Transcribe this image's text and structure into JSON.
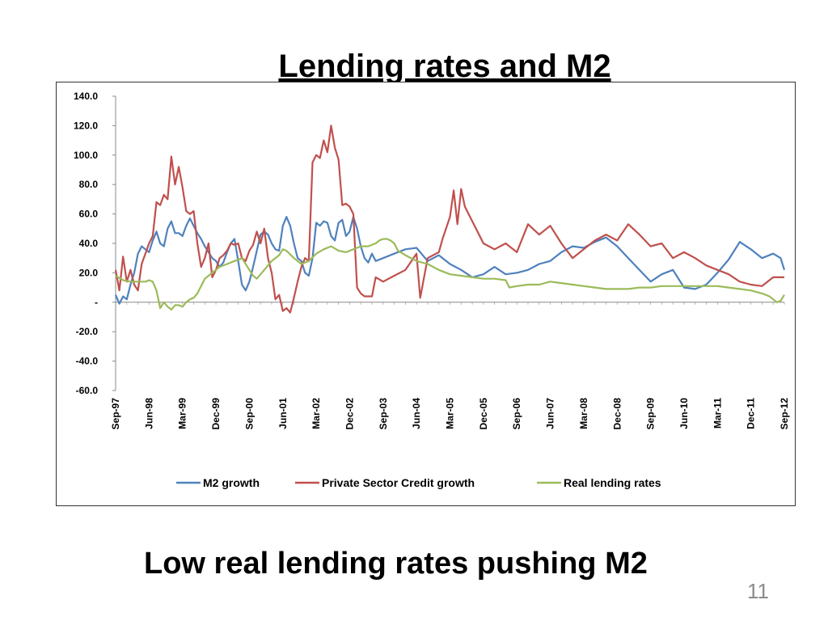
{
  "slide": {
    "title": "Lending rates and M2",
    "caption": "Low real lending rates  pushing M2",
    "page_number": "11"
  },
  "chart_data": {
    "type": "line",
    "title": "",
    "xlabel": "",
    "ylabel": "",
    "ylim": [
      -60,
      140
    ],
    "y_ticks": [
      140,
      120,
      100,
      80,
      60,
      40,
      20,
      0,
      -20,
      -40,
      -60
    ],
    "y_tick_labels": [
      "140.0",
      "120.0",
      "100.0",
      "80.0",
      "60.0",
      "40.0",
      "20.0",
      "-",
      "-20.0",
      "-40.0",
      "-60.0"
    ],
    "x_tick_labels": [
      "Sep-97",
      "Jun-98",
      "Mar-99",
      "Dec-99",
      "Sep-00",
      "Jun-01",
      "Mar-02",
      "Dec-02",
      "Sep-03",
      "Jun-04",
      "Mar-05",
      "Dec-05",
      "Sep-06",
      "Jun-07",
      "Mar-08",
      "Dec-08",
      "Sep-09",
      "Jun-10",
      "Mar-11",
      "Dec-11",
      "Sep-12"
    ],
    "x_tick_index": [
      0,
      9,
      18,
      27,
      36,
      45,
      54,
      63,
      72,
      81,
      90,
      99,
      108,
      117,
      126,
      135,
      144,
      153,
      162,
      171,
      180
    ],
    "grid": false,
    "legend_position": "bottom",
    "series": [
      {
        "name": "M2 growth",
        "color": "#4f81bd",
        "x": [
          0,
          1,
          2,
          3,
          4,
          5,
          6,
          7,
          8,
          9,
          10,
          11,
          12,
          13,
          14,
          15,
          16,
          17,
          18,
          19,
          20,
          21,
          22,
          23,
          24,
          25,
          26,
          27,
          28,
          29,
          30,
          31,
          32,
          33,
          34,
          35,
          36,
          37,
          38,
          39,
          40,
          41,
          42,
          43,
          44,
          45,
          46,
          47,
          48,
          49,
          50,
          51,
          52,
          53,
          54,
          55,
          56,
          57,
          58,
          59,
          60,
          61,
          62,
          63,
          64,
          65,
          66,
          67,
          68,
          69,
          70,
          72,
          75,
          78,
          81,
          84,
          87,
          90,
          93,
          96,
          99,
          102,
          105,
          108,
          111,
          114,
          117,
          120,
          123,
          126,
          129,
          132,
          135,
          138,
          141,
          144,
          147,
          150,
          153,
          156,
          159,
          162,
          165,
          168,
          171,
          174,
          177,
          179,
          180
        ],
        "values": [
          5,
          -1,
          4,
          2,
          12,
          20,
          33,
          38,
          36,
          34,
          42,
          48,
          40,
          38,
          50,
          55,
          47,
          47,
          45,
          52,
          57,
          52,
          47,
          43,
          38,
          34,
          30,
          28,
          24,
          27,
          34,
          40,
          43,
          28,
          12,
          8,
          14,
          24,
          35,
          46,
          48,
          46,
          40,
          36,
          35,
          52,
          58,
          52,
          40,
          30,
          28,
          20,
          18,
          30,
          54,
          52,
          55,
          54,
          45,
          42,
          54,
          56,
          45,
          48,
          58,
          50,
          38,
          30,
          27,
          33,
          28,
          30,
          33,
          36,
          37,
          28,
          32,
          26,
          22,
          17,
          19,
          24,
          19,
          20,
          22,
          26,
          28,
          34,
          38,
          37,
          41,
          44,
          38,
          30,
          22,
          14,
          19,
          22,
          10,
          9,
          12,
          20,
          29,
          41,
          36,
          30,
          33,
          30,
          22
        ]
      },
      {
        "name": "Private Sector Credit growth",
        "color": "#c0504d",
        "x": [
          0,
          1,
          2,
          3,
          4,
          5,
          6,
          7,
          8,
          9,
          10,
          11,
          12,
          13,
          14,
          15,
          16,
          17,
          18,
          19,
          20,
          21,
          22,
          23,
          24,
          25,
          26,
          27,
          28,
          29,
          30,
          31,
          32,
          33,
          34,
          35,
          36,
          37,
          38,
          39,
          40,
          41,
          42,
          43,
          44,
          45,
          46,
          47,
          48,
          49,
          50,
          51,
          52,
          53,
          54,
          55,
          56,
          57,
          58,
          59,
          60,
          61,
          62,
          63,
          64,
          65,
          66,
          67,
          68,
          69,
          70,
          72,
          75,
          78,
          81,
          82,
          84,
          87,
          88,
          90,
          91,
          92,
          93,
          94,
          96,
          99,
          102,
          105,
          108,
          111,
          114,
          117,
          120,
          123,
          126,
          129,
          132,
          135,
          138,
          141,
          144,
          147,
          150,
          153,
          156,
          159,
          162,
          165,
          168,
          171,
          174,
          177,
          179,
          180
        ],
        "values": [
          22,
          8,
          31,
          14,
          22,
          12,
          8,
          26,
          33,
          40,
          45,
          68,
          66,
          73,
          70,
          99,
          80,
          92,
          78,
          62,
          60,
          62,
          40,
          24,
          30,
          40,
          17,
          22,
          30,
          32,
          35,
          40,
          39,
          40,
          30,
          28,
          35,
          39,
          48,
          40,
          50,
          30,
          20,
          2,
          5,
          -6,
          -4,
          -7,
          3,
          14,
          24,
          30,
          28,
          95,
          100,
          98,
          110,
          102,
          120,
          105,
          97,
          66,
          67,
          65,
          60,
          10,
          6,
          4,
          4,
          4,
          17,
          14,
          18,
          22,
          33,
          3,
          30,
          34,
          43,
          58,
          76,
          53,
          77,
          65,
          55,
          40,
          36,
          40,
          34,
          53,
          46,
          52,
          40,
          30,
          36,
          42,
          46,
          42,
          53,
          46,
          38,
          40,
          30,
          34,
          30,
          25,
          22,
          19,
          14,
          12,
          11,
          17,
          17,
          17
        ]
      },
      {
        "name": "Real lending rates",
        "color": "#9bbb59",
        "x": [
          0,
          2,
          4,
          6,
          8,
          9,
          10,
          11,
          12,
          13,
          14,
          15,
          16,
          17,
          18,
          19,
          20,
          21,
          22,
          24,
          26,
          28,
          30,
          32,
          34,
          36,
          37,
          38,
          40,
          42,
          44,
          45,
          46,
          48,
          50,
          52,
          54,
          56,
          58,
          60,
          62,
          64,
          66,
          68,
          70,
          71,
          72,
          73,
          74,
          75,
          76,
          78,
          81,
          84,
          87,
          90,
          93,
          96,
          99,
          102,
          105,
          106,
          108,
          111,
          114,
          117,
          120,
          123,
          126,
          129,
          132,
          135,
          138,
          141,
          144,
          147,
          150,
          153,
          156,
          159,
          162,
          165,
          168,
          171,
          174,
          176,
          177,
          178,
          179,
          180
        ],
        "values": [
          18,
          15,
          14,
          14,
          14,
          15,
          14,
          8,
          -4,
          0,
          -3,
          -5,
          -2,
          -2,
          -3,
          0,
          2,
          3,
          6,
          16,
          20,
          24,
          26,
          28,
          30,
          22,
          18,
          16,
          22,
          28,
          32,
          36,
          35,
          30,
          26,
          28,
          33,
          36,
          38,
          35,
          34,
          36,
          38,
          38,
          40,
          42,
          43,
          43,
          42,
          40,
          35,
          32,
          28,
          26,
          22,
          19,
          18,
          17,
          16,
          16,
          15,
          10,
          11,
          12,
          12,
          14,
          13,
          12,
          11,
          10,
          9,
          9,
          9,
          10,
          10,
          11,
          11,
          11,
          11,
          11,
          11,
          10,
          9,
          8,
          6,
          4,
          2,
          0,
          1,
          5
        ]
      }
    ]
  }
}
